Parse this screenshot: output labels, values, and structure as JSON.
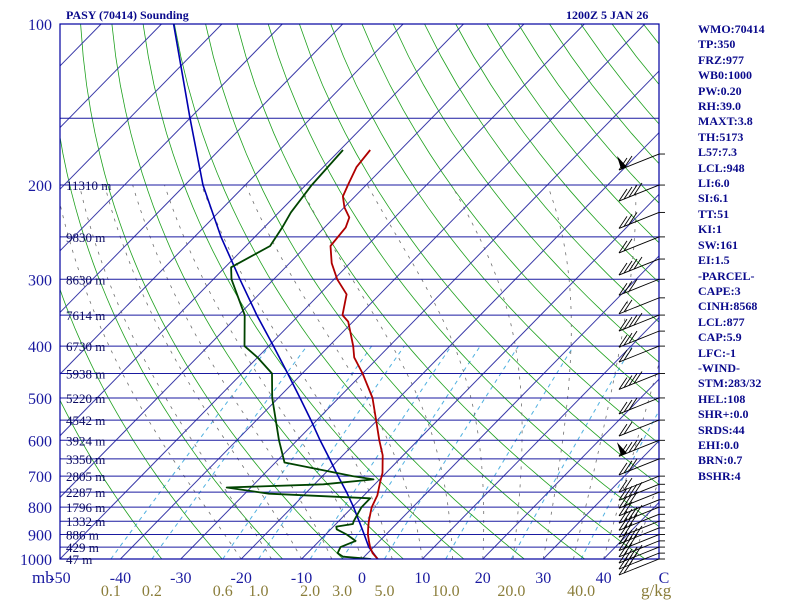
{
  "chart_data": {
    "type": "skew-t sounding",
    "title": "PASY (70414) Sounding",
    "valid_time": "1200Z  5 JAN 26",
    "pressure_range_mb": [
      1000,
      100
    ],
    "pressure_labels": [
      "100",
      "200",
      "300",
      "400",
      "500",
      "600",
      "700",
      "800",
      "900",
      "1000"
    ],
    "pressure_label_values": [
      100,
      200,
      300,
      400,
      500,
      600,
      700,
      800,
      900,
      1000
    ],
    "pressure_axis_unit": "mb",
    "temperature_range_c": [
      -50,
      50
    ],
    "temperature_labels": [
      "-50",
      "-40",
      "-30",
      "-20",
      "-10",
      "0",
      "10",
      "20",
      "30",
      "40",
      "C"
    ],
    "mixing_ratio_labels": [
      {
        "text": "0.1",
        "value": 0.1
      },
      {
        "text": "0.2",
        "value": 0.2
      },
      {
        "text": "0.6",
        "value": 0.6
      },
      {
        "text": "1.0",
        "value": 1.0
      },
      {
        "text": "2.0",
        "value": 2.0
      },
      {
        "text": "3.0",
        "value": 3.0
      },
      {
        "text": "5.0",
        "value": 5.0
      },
      {
        "text": "10.0",
        "value": 10.0
      },
      {
        "text": "20.0",
        "value": 20.0
      },
      {
        "text": "40.0",
        "value": 40.0
      }
    ],
    "mixing_ratio_unit": "g/kg",
    "height_labels": [
      {
        "p": 1000,
        "text": "47 m"
      },
      {
        "p": 950,
        "text": "429 m"
      },
      {
        "p": 900,
        "text": "886 m"
      },
      {
        "p": 850,
        "text": "1332 m"
      },
      {
        "p": 800,
        "text": "1796 m"
      },
      {
        "p": 750,
        "text": "2287 m"
      },
      {
        "p": 700,
        "text": "2805 m"
      },
      {
        "p": 650,
        "text": "3350 m"
      },
      {
        "p": 600,
        "text": "3924 m"
      },
      {
        "p": 550,
        "text": "4542 m"
      },
      {
        "p": 500,
        "text": "5220 m"
      },
      {
        "p": 450,
        "text": "5938 m"
      },
      {
        "p": 400,
        "text": "6730 m"
      },
      {
        "p": 350,
        "text": "7614 m"
      },
      {
        "p": 300,
        "text": "8630 m"
      },
      {
        "p": 250,
        "text": "9830 m"
      },
      {
        "p": 200,
        "text": "11310 m"
      }
    ],
    "temperature_profile": [
      {
        "p": 1000,
        "t": 2.6
      },
      {
        "p": 975,
        "t": 0.8
      },
      {
        "p": 950,
        "t": -0.6
      },
      {
        "p": 925,
        "t": -1.8
      },
      {
        "p": 900,
        "t": -3.0
      },
      {
        "p": 875,
        "t": -4.0
      },
      {
        "p": 850,
        "t": -5.0
      },
      {
        "p": 800,
        "t": -6.8
      },
      {
        "p": 760,
        "t": -7.8
      },
      {
        "p": 720,
        "t": -9.4
      },
      {
        "p": 690,
        "t": -10.6
      },
      {
        "p": 640,
        "t": -13.4
      },
      {
        "p": 600,
        "t": -16.4
      },
      {
        "p": 550,
        "t": -20.2
      },
      {
        "p": 500,
        "t": -24.4
      },
      {
        "p": 450,
        "t": -30.0
      },
      {
        "p": 420,
        "t": -34.0
      },
      {
        "p": 400,
        "t": -36.0
      },
      {
        "p": 360,
        "t": -40.8
      },
      {
        "p": 350,
        "t": -42.8
      },
      {
        "p": 320,
        "t": -45.5
      },
      {
        "p": 300,
        "t": -49.5
      },
      {
        "p": 280,
        "t": -53.0
      },
      {
        "p": 260,
        "t": -56.0
      },
      {
        "p": 240,
        "t": -56.5
      },
      {
        "p": 230,
        "t": -57.5
      },
      {
        "p": 220,
        "t": -60.0
      },
      {
        "p": 210,
        "t": -62.0
      },
      {
        "p": 200,
        "t": -63.0
      },
      {
        "p": 185,
        "t": -64.5
      },
      {
        "p": 172,
        "t": -65.0
      }
    ],
    "dewpoint_profile": [
      {
        "p": 1000,
        "td": 1.5
      },
      {
        "p": 990,
        "td": -3.5
      },
      {
        "p": 975,
        "td": -5.0
      },
      {
        "p": 950,
        "td": -5.5
      },
      {
        "p": 925,
        "td": -4.0
      },
      {
        "p": 900,
        "td": -6.5
      },
      {
        "p": 880,
        "td": -9.0
      },
      {
        "p": 870,
        "td": -9.5
      },
      {
        "p": 860,
        "td": -7.2
      },
      {
        "p": 850,
        "td": -7.5
      },
      {
        "p": 800,
        "td": -8.5
      },
      {
        "p": 770,
        "td": -8.5
      },
      {
        "p": 755,
        "td": -26.0
      },
      {
        "p": 735,
        "td": -34.0
      },
      {
        "p": 725,
        "td": -18.5
      },
      {
        "p": 710,
        "td": -11.0
      },
      {
        "p": 700,
        "td": -15.0
      },
      {
        "p": 660,
        "td": -28.5
      },
      {
        "p": 600,
        "td": -33.0
      },
      {
        "p": 500,
        "td": -41.0
      },
      {
        "p": 450,
        "td": -45.0
      },
      {
        "p": 420,
        "td": -50.0
      },
      {
        "p": 400,
        "td": -54.0
      },
      {
        "p": 350,
        "td": -59.0
      },
      {
        "p": 300,
        "td": -67.0
      },
      {
        "p": 285,
        "td": -69.0
      },
      {
        "p": 260,
        "td": -66.0
      },
      {
        "p": 240,
        "td": -67.0
      },
      {
        "p": 225,
        "td": -68.0
      },
      {
        "p": 200,
        "td": -69.0
      },
      {
        "p": 172,
        "td": -69.5
      }
    ],
    "parcel_path": [
      {
        "p": 1000,
        "t": 2.6
      },
      {
        "p": 950,
        "t": -0.8
      },
      {
        "p": 900,
        "t": -3.6
      },
      {
        "p": 850,
        "t": -6.6
      },
      {
        "p": 800,
        "t": -9.8
      },
      {
        "p": 750,
        "t": -13.4
      },
      {
        "p": 700,
        "t": -17.4
      },
      {
        "p": 650,
        "t": -21.6
      },
      {
        "p": 600,
        "t": -26.2
      },
      {
        "p": 550,
        "t": -31.0
      },
      {
        "p": 500,
        "t": -36.4
      },
      {
        "p": 450,
        "t": -42.4
      },
      {
        "p": 400,
        "t": -49.2
      },
      {
        "p": 350,
        "t": -57.0
      },
      {
        "p": 300,
        "t": -65.6
      },
      {
        "p": 250,
        "t": -75.6
      },
      {
        "p": 200,
        "t": -87.0
      },
      {
        "p": 150,
        "t": -100.0
      },
      {
        "p": 100,
        "t": -118.0
      }
    ]
  },
  "indices": [
    "WMO:70414",
    "TP:350",
    "FRZ:977",
    "WB0:1000",
    "PW:0.20",
    "RH:39.0",
    "MAXT:3.8",
    "TH:5173",
    "L57:7.3",
    "LCL:948",
    "LI:6.0",
    "SI:6.1",
    "TT:51",
    "KI:1",
    "SW:161",
    "EI:1.5",
    "-PARCEL-",
    "CAPE:3",
    "CINH:8568",
    "LCL:877",
    "CAP:5.9",
    "LFC:-1",
    "-WIND-",
    "STM:283/32",
    "HEL:108",
    "SHR+:0.0",
    "SRDS:44",
    "EHI:0.0",
    "BRN:0.7",
    "BSHR:4"
  ],
  "colors": {
    "frame": "#0000a0",
    "isobar": "#1a1aa0",
    "isotherm": "#3a3aa8",
    "dry_adiabat": "#1ea01e",
    "moist_adiabat": "#707070",
    "mixing_ratio": "#4fb0e0",
    "temperature": "#b00000",
    "dewpoint": "#004400",
    "parcel": "#0000b0",
    "mixing_label": "#8a7d3a",
    "text": "#0a0a8c",
    "wind": "#000000"
  }
}
